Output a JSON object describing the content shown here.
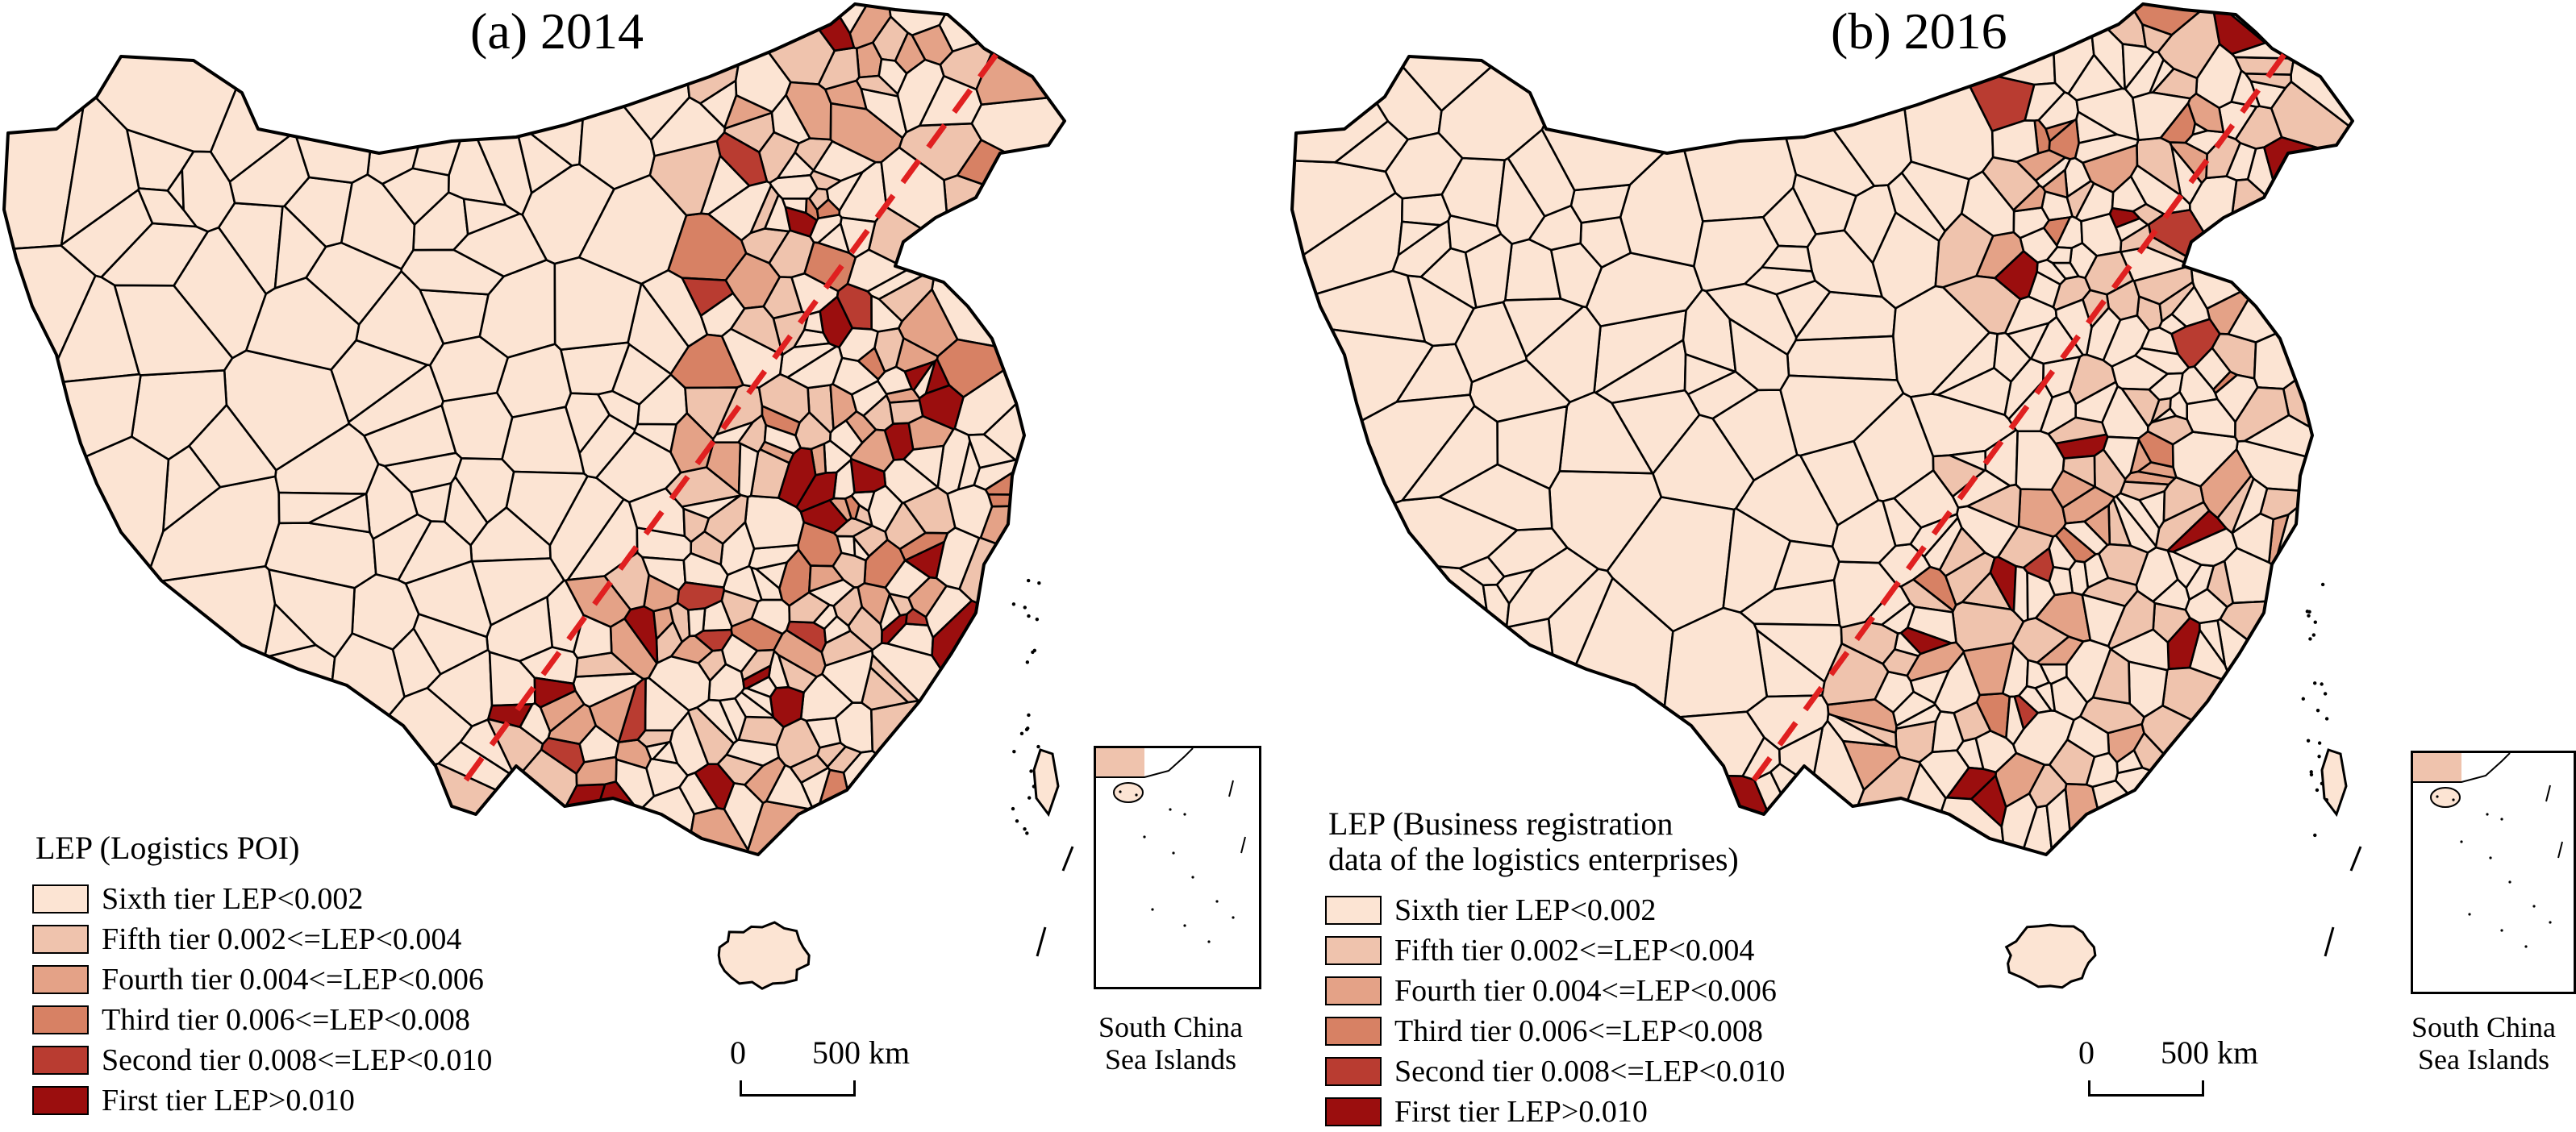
{
  "panels": [
    {
      "title": "(a) 2014",
      "legend_title_lines": [
        "LEP (Logistics POI)"
      ],
      "tier_counts": [
        205,
        70,
        40,
        18,
        9,
        22
      ],
      "seed": 11
    },
    {
      "title": "(b) 2016",
      "legend_title_lines": [
        "LEP (Business registration",
        "data of the logistics enterprises)"
      ],
      "tier_counts": [
        248,
        70,
        26,
        11,
        5,
        12
      ],
      "seed": 29
    }
  ],
  "legend_items": [
    {
      "label": "Sixth tier LEP<0.002",
      "color": "#fce4d3"
    },
    {
      "label": "Fifth tier 0.002<=LEP<0.004",
      "color": "#efc3ad"
    },
    {
      "label": "Fourth tier 0.004<=LEP<0.006",
      "color": "#e4a287"
    },
    {
      "label": "Third tier 0.006<=LEP<0.008",
      "color": "#d78164"
    },
    {
      "label": "Second tier 0.008<=LEP<0.010",
      "color": "#b93c31"
    },
    {
      "label": "First tier LEP>0.010",
      "color": "#9b0e0e"
    }
  ],
  "inset_caption_lines": [
    "South China",
    "Sea Islands"
  ],
  "scale_bar": {
    "zero": "0",
    "distance": "500 km"
  },
  "divide_line_color": "#e02020"
}
